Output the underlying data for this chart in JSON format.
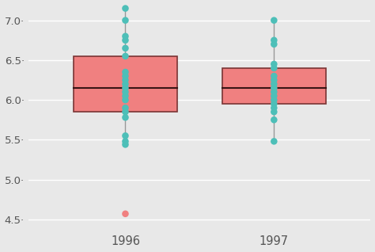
{
  "groups": [
    "1996",
    "1997"
  ],
  "data_1996": [
    7.15,
    7.0,
    6.8,
    6.75,
    6.65,
    6.55,
    6.35,
    6.3,
    6.25,
    6.2,
    6.15,
    6.1,
    6.05,
    6.0,
    5.9,
    5.85,
    5.78,
    5.55,
    5.48,
    5.44,
    4.57
  ],
  "data_1997": [
    7.0,
    6.75,
    6.7,
    6.45,
    6.4,
    6.3,
    6.25,
    6.2,
    6.15,
    6.1,
    6.05,
    6.0,
    5.95,
    5.9,
    5.85,
    5.75,
    5.48
  ],
  "box_color": "#F08080",
  "box_edge_color": "#7a3535",
  "median_color": "#3a1515",
  "whisker_color": "#999999",
  "dot_color_teal": "#4DBFB8",
  "dot_color_salmon": "#F08080",
  "background_color": "#E8E8E8",
  "grid_color": "#ffffff",
  "ylim": [
    4.35,
    7.2
  ],
  "yticks": [
    4.5,
    5.0,
    5.5,
    6.0,
    6.5,
    7.0
  ],
  "ytick_labels": [
    "4.5·",
    "5.0·",
    "5.5·",
    "6.0·",
    "6.5·",
    "7.0·"
  ],
  "box_width": 0.7,
  "dot_size": 38,
  "figsize": [
    4.74,
    3.18
  ],
  "dpi": 100
}
